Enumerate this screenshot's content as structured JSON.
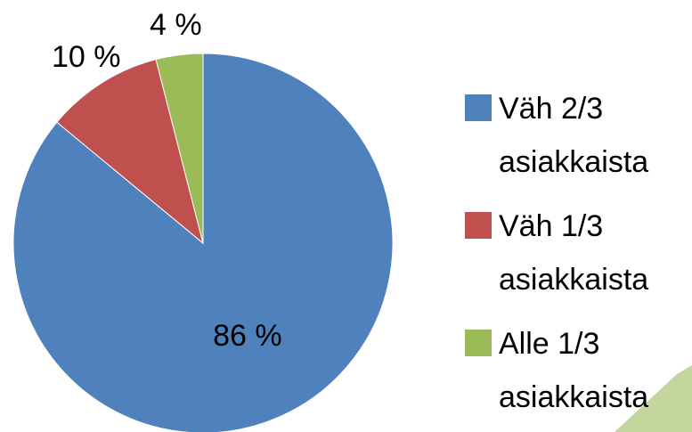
{
  "chart_data": {
    "type": "pie",
    "categories": [
      "Väh 2/3 asiakkaista",
      "Väh 1/3 asiakkaista",
      "Alle 1/3 asiakkaista"
    ],
    "values": [
      86,
      10,
      4
    ],
    "value_labels": [
      "86 %",
      "10 %",
      "4 %"
    ],
    "colors": [
      "#4f81bd",
      "#c0504d",
      "#9bbb59"
    ],
    "legend": "right"
  }
}
